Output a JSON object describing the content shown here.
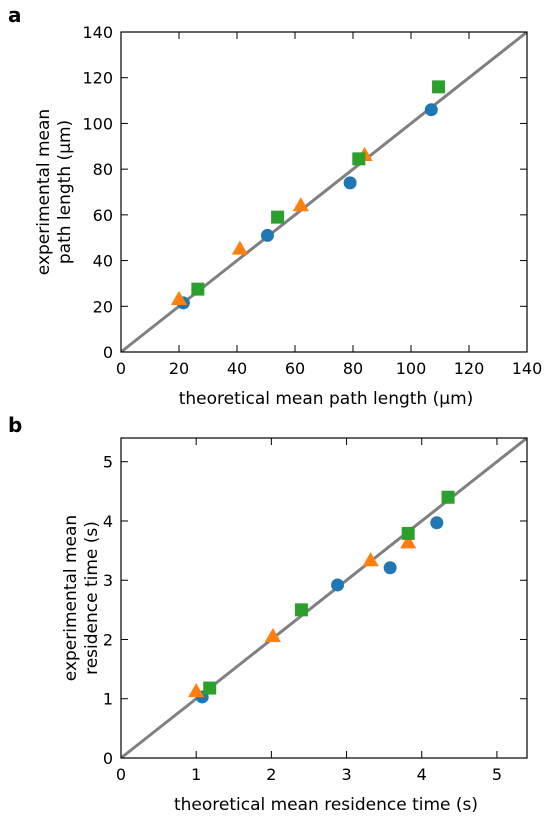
{
  "chart_data": [
    {
      "panel_label": "a",
      "type": "scatter",
      "xlabel": "theoretical mean path length (μm)",
      "ylabel_lines": [
        "experimental mean",
        "path length (μm)"
      ],
      "xlim": [
        0,
        140
      ],
      "ylim": [
        0,
        140
      ],
      "xticks": [
        0,
        20,
        40,
        60,
        80,
        100,
        120,
        140
      ],
      "yticks": [
        0,
        20,
        40,
        60,
        80,
        100,
        120,
        140
      ],
      "grid": false,
      "identity_line": {
        "from": [
          0,
          0
        ],
        "to": [
          140,
          140
        ],
        "color": "#808080"
      },
      "series": [
        {
          "marker": "circle",
          "color": "#1f77b4",
          "points": [
            [
              21.5,
              21.5
            ],
            [
              50.5,
              51
            ],
            [
              79,
              74
            ],
            [
              107,
              106
            ]
          ]
        },
        {
          "marker": "triangle",
          "color": "#ff7f0e",
          "points": [
            [
              20,
              23
            ],
            [
              41,
              45
            ],
            [
              62,
              64
            ],
            [
              84,
              86
            ]
          ]
        },
        {
          "marker": "square",
          "color": "#2ca02c",
          "points": [
            [
              26.5,
              27.5
            ],
            [
              54,
              59
            ],
            [
              82,
              84.5
            ],
            [
              109.5,
              116
            ]
          ]
        }
      ]
    },
    {
      "panel_label": "b",
      "type": "scatter",
      "xlabel": "theoretical mean residence time  (s)",
      "ylabel_lines": [
        "experimental mean",
        "residence time  (s)"
      ],
      "xlim": [
        0,
        5.4
      ],
      "ylim": [
        0,
        5.4
      ],
      "xticks": [
        0,
        1,
        2,
        3,
        4,
        5
      ],
      "yticks": [
        0,
        1,
        2,
        3,
        4,
        5
      ],
      "grid": false,
      "identity_line": {
        "from": [
          0,
          0
        ],
        "to": [
          5.4,
          5.4
        ],
        "color": "#808080"
      },
      "series": [
        {
          "marker": "circle",
          "color": "#1f77b4",
          "points": [
            [
              1.08,
              1.03
            ],
            [
              2.88,
              2.92
            ],
            [
              3.58,
              3.21
            ],
            [
              4.2,
              3.97
            ]
          ]
        },
        {
          "marker": "triangle",
          "color": "#ff7f0e",
          "points": [
            [
              1.0,
              1.12
            ],
            [
              2.02,
              2.05
            ],
            [
              3.32,
              3.33
            ],
            [
              3.82,
              3.63
            ]
          ]
        },
        {
          "marker": "square",
          "color": "#2ca02c",
          "points": [
            [
              1.18,
              1.18
            ],
            [
              2.4,
              2.5
            ],
            [
              3.82,
              3.79
            ],
            [
              4.35,
              4.4
            ]
          ]
        }
      ]
    }
  ]
}
